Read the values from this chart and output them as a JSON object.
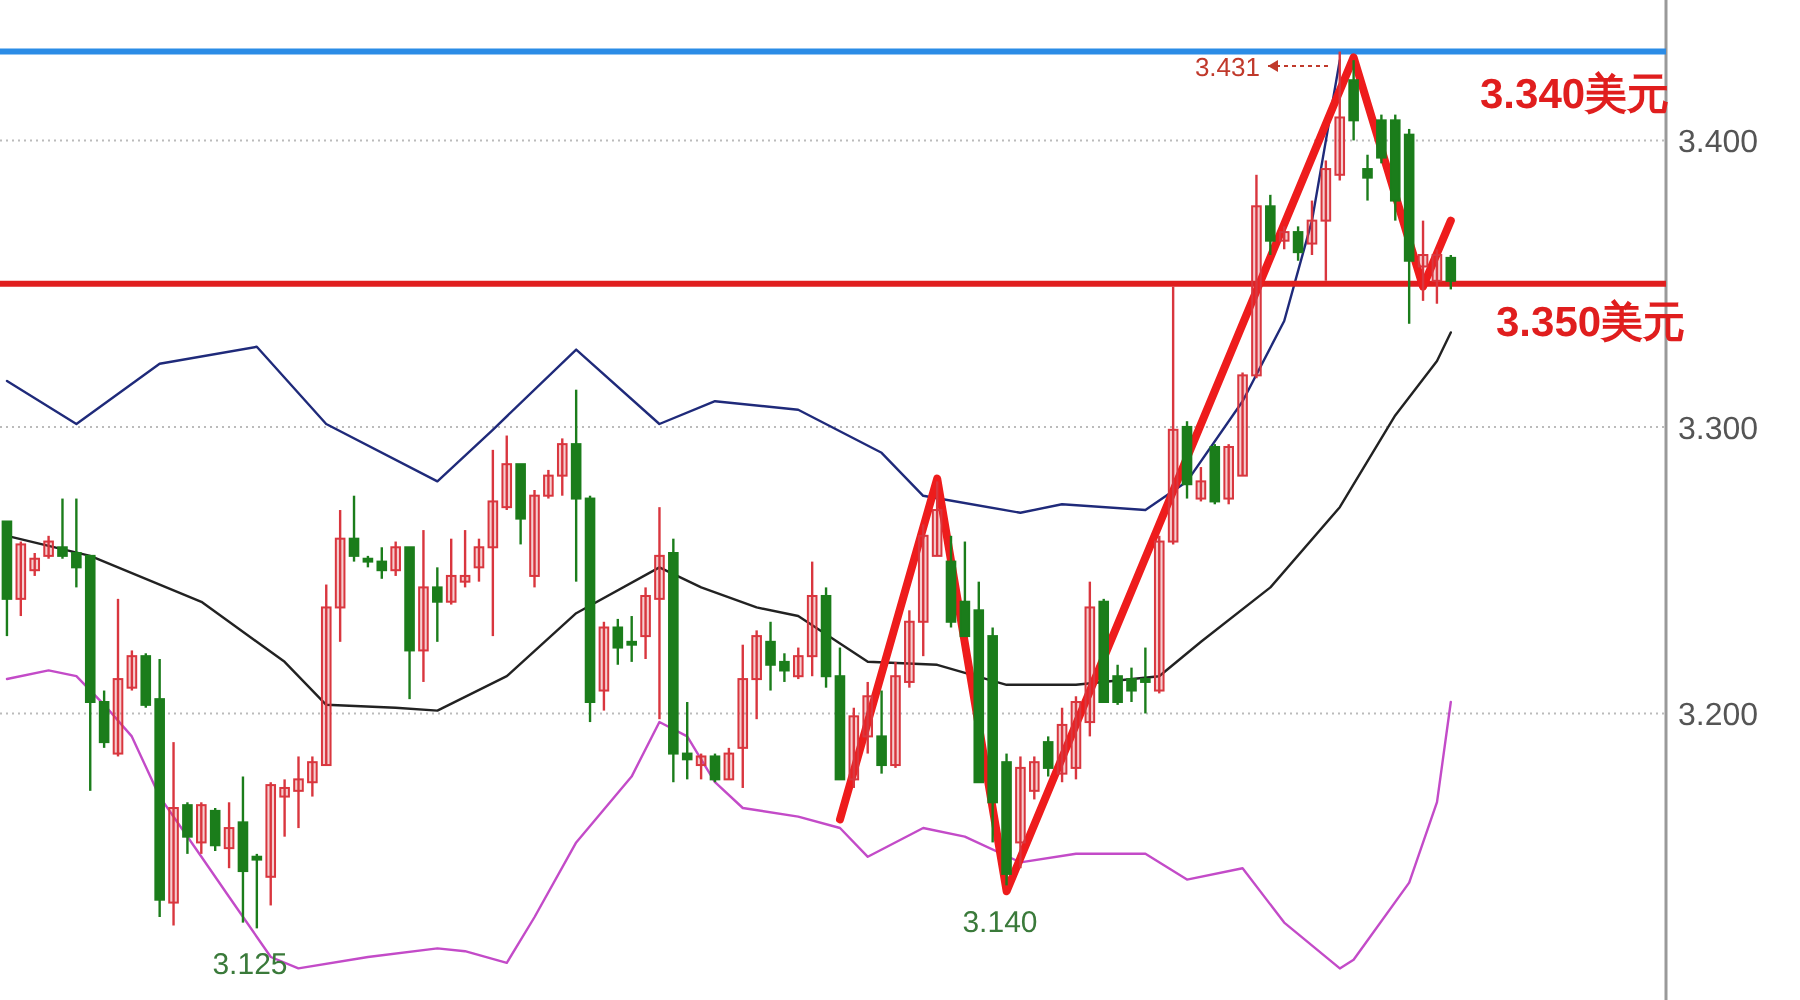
{
  "chart_data": {
    "type": "candlestick",
    "ylim": [
      3.1,
      3.449
    ],
    "yticks": [
      {
        "value": 3.2,
        "label": "3.200"
      },
      {
        "value": 3.3,
        "label": "3.300"
      },
      {
        "value": 3.4,
        "label": "3.400"
      }
    ],
    "tick_labels": "y",
    "grid": "y",
    "categories": [
      null,
      null,
      null,
      null,
      null,
      null,
      null,
      null,
      null,
      null,
      null,
      null,
      null,
      null,
      null,
      null,
      null,
      null,
      null,
      null,
      null,
      null,
      null,
      null,
      null,
      null,
      null,
      null,
      null,
      null,
      null,
      null,
      null,
      null,
      null,
      null,
      null,
      null,
      null,
      null,
      null,
      null,
      null,
      null,
      null,
      null,
      null,
      null,
      null,
      null,
      null,
      null,
      null,
      null,
      null,
      null,
      null,
      null,
      null,
      null,
      null,
      null,
      null,
      null,
      null,
      null,
      null,
      null,
      null,
      null,
      null,
      null,
      null,
      null,
      null,
      null,
      null,
      null,
      null,
      null,
      null,
      null,
      null,
      null,
      null,
      null,
      null,
      null,
      null,
      null,
      null,
      null,
      null,
      null,
      null,
      null,
      null,
      null,
      null,
      null,
      null,
      null,
      null,
      null,
      null,
      null,
      null,
      null,
      null,
      null,
      null,
      null,
      null,
      null,
      null,
      null,
      null,
      null,
      null,
      null
    ],
    "ohlc": [
      [
        3.267,
        3.267,
        3.227,
        3.24
      ],
      [
        3.24,
        3.26,
        3.234,
        3.259
      ],
      [
        3.25,
        3.256,
        3.248,
        3.254
      ],
      [
        3.255,
        3.262,
        3.254,
        3.26
      ],
      [
        3.258,
        3.275,
        3.254,
        3.255
      ],
      [
        3.256,
        3.275,
        3.244,
        3.251
      ],
      [
        3.255,
        3.255,
        3.173,
        3.204
      ],
      [
        3.204,
        3.208,
        3.188,
        3.19
      ],
      [
        3.186,
        3.24,
        3.185,
        3.212
      ],
      [
        3.209,
        3.222,
        3.208,
        3.22
      ],
      [
        3.22,
        3.221,
        3.202,
        3.203
      ],
      [
        3.205,
        3.219,
        3.129,
        3.135
      ],
      [
        3.134,
        3.19,
        3.126,
        3.167
      ],
      [
        3.168,
        3.169,
        3.151,
        3.157
      ],
      [
        3.155,
        3.169,
        3.151,
        3.168
      ],
      [
        3.166,
        3.167,
        3.152,
        3.154
      ],
      [
        3.153,
        3.169,
        3.146,
        3.16
      ],
      [
        3.162,
        3.178,
        3.127,
        3.145
      ],
      [
        3.15,
        3.151,
        3.125,
        3.149
      ],
      [
        3.143,
        3.176,
        3.133,
        3.175
      ],
      [
        3.171,
        3.177,
        3.157,
        3.174
      ],
      [
        3.173,
        3.185,
        3.16,
        3.177
      ],
      [
        3.176,
        3.185,
        3.171,
        3.183
      ],
      [
        3.182,
        3.245,
        3.182,
        3.237
      ],
      [
        3.237,
        3.271,
        3.225,
        3.261
      ],
      [
        3.261,
        3.276,
        3.253,
        3.255
      ],
      [
        3.254,
        3.255,
        3.251,
        3.253
      ],
      [
        3.253,
        3.258,
        3.247,
        3.25
      ],
      [
        3.25,
        3.26,
        3.248,
        3.258
      ],
      [
        3.258,
        3.258,
        3.205,
        3.222
      ],
      [
        3.222,
        3.264,
        3.211,
        3.244
      ],
      [
        3.244,
        3.251,
        3.225,
        3.239
      ],
      [
        3.239,
        3.261,
        3.238,
        3.248
      ],
      [
        3.246,
        3.264,
        3.244,
        3.248
      ],
      [
        3.251,
        3.261,
        3.246,
        3.258
      ],
      [
        3.258,
        3.292,
        3.227,
        3.274
      ],
      [
        3.272,
        3.297,
        3.271,
        3.287
      ],
      [
        3.287,
        3.287,
        3.259,
        3.268
      ],
      [
        3.248,
        3.278,
        3.244,
        3.276
      ],
      [
        3.276,
        3.285,
        3.275,
        3.283
      ],
      [
        3.283,
        3.296,
        3.276,
        3.294
      ],
      [
        3.294,
        3.313,
        3.246,
        3.275
      ],
      [
        3.275,
        3.276,
        3.197,
        3.204
      ],
      [
        3.208,
        3.232,
        3.201,
        3.23
      ],
      [
        3.23,
        3.233,
        3.217,
        3.223
      ],
      [
        3.225,
        3.234,
        3.218,
        3.224
      ],
      [
        3.227,
        3.244,
        3.219,
        3.241
      ],
      [
        3.24,
        3.272,
        3.198,
        3.255
      ],
      [
        3.256,
        3.261,
        3.176,
        3.186
      ],
      [
        3.186,
        3.204,
        3.177,
        3.184
      ],
      [
        3.182,
        3.186,
        3.177,
        3.185
      ],
      [
        3.185,
        3.186,
        3.176,
        3.177
      ],
      [
        3.177,
        3.188,
        3.177,
        3.186
      ],
      [
        3.188,
        3.224,
        3.174,
        3.212
      ],
      [
        3.212,
        3.229,
        3.198,
        3.227
      ],
      [
        3.225,
        3.232,
        3.208,
        3.217
      ],
      [
        3.218,
        3.221,
        3.211,
        3.215
      ],
      [
        3.213,
        3.223,
        3.212,
        3.22
      ],
      [
        3.22,
        3.253,
        3.213,
        3.241
      ],
      [
        3.241,
        3.244,
        3.209,
        3.213
      ],
      [
        3.213,
        3.223,
        3.177,
        3.177
      ],
      [
        3.177,
        3.202,
        3.174,
        3.199
      ],
      [
        3.192,
        3.211,
        3.186,
        3.206
      ],
      [
        3.192,
        3.208,
        3.179,
        3.182
      ],
      [
        3.182,
        3.218,
        3.181,
        3.213
      ],
      [
        3.211,
        3.236,
        3.209,
        3.232
      ],
      [
        3.232,
        3.266,
        3.22,
        3.262
      ],
      [
        3.255,
        3.281,
        3.255,
        3.271
      ],
      [
        3.253,
        3.262,
        3.23,
        3.232
      ],
      [
        3.239,
        3.26,
        3.227,
        3.227
      ],
      [
        3.236,
        3.246,
        3.176,
        3.176
      ],
      [
        3.227,
        3.23,
        3.155,
        3.169
      ],
      [
        3.183,
        3.186,
        3.14,
        3.144
      ],
      [
        3.155,
        3.185,
        3.146,
        3.181
      ],
      [
        3.173,
        3.185,
        3.17,
        3.183
      ],
      [
        3.19,
        3.192,
        3.178,
        3.181
      ],
      [
        3.179,
        3.202,
        3.176,
        3.196
      ],
      [
        3.181,
        3.206,
        3.177,
        3.204
      ],
      [
        3.197,
        3.246,
        3.192,
        3.237
      ],
      [
        3.239,
        3.24,
        3.204,
        3.204
      ],
      [
        3.213,
        3.217,
        3.203,
        3.204
      ],
      [
        3.212,
        3.216,
        3.204,
        3.208
      ],
      [
        3.212,
        3.223,
        3.2,
        3.211
      ],
      [
        3.208,
        3.262,
        3.207,
        3.26
      ],
      [
        3.26,
        3.349,
        3.259,
        3.299
      ],
      [
        3.3,
        3.302,
        3.275,
        3.28
      ],
      [
        3.275,
        3.286,
        3.274,
        3.281
      ],
      [
        3.293,
        3.294,
        3.273,
        3.274
      ],
      [
        3.275,
        3.294,
        3.273,
        3.293
      ],
      [
        3.283,
        3.319,
        3.283,
        3.318
      ],
      [
        3.318,
        3.388,
        3.317,
        3.377
      ],
      [
        3.377,
        3.381,
        3.36,
        3.365
      ],
      [
        3.365,
        3.37,
        3.362,
        3.368
      ],
      [
        3.368,
        3.37,
        3.358,
        3.361
      ],
      [
        3.364,
        3.379,
        3.36,
        3.372
      ],
      [
        3.372,
        3.393,
        3.351,
        3.39
      ],
      [
        3.388,
        3.431,
        3.386,
        3.408
      ],
      [
        3.421,
        3.428,
        3.4,
        3.407
      ],
      [
        3.39,
        3.395,
        3.379,
        3.387
      ],
      [
        3.407,
        3.409,
        3.392,
        3.394
      ],
      [
        3.407,
        3.409,
        3.372,
        3.379
      ],
      [
        3.402,
        3.404,
        3.336,
        3.358
      ],
      [
        3.356,
        3.372,
        3.344,
        3.36
      ],
      [
        3.351,
        3.362,
        3.343,
        3.36
      ],
      [
        3.359,
        3.36,
        3.348,
        3.351
      ],
      null,
      null,
      null,
      null,
      null,
      null,
      null,
      null,
      null,
      null,
      null,
      null,
      null,
      null,
      null
    ],
    "series": [
      {
        "type": "line",
        "color": "#1f2a7a",
        "values": [
          3.316,
          null,
          null,
          null,
          null,
          3.301,
          null,
          null,
          null,
          null,
          null,
          3.322,
          null,
          null,
          null,
          null,
          null,
          null,
          3.328,
          null,
          null,
          null,
          null,
          3.301,
          null,
          null,
          null,
          null,
          null,
          null,
          null,
          3.281,
          null,
          null,
          null,
          3.299,
          null,
          null,
          null,
          null,
          null,
          3.327,
          null,
          null,
          null,
          null,
          null,
          3.301,
          null,
          null,
          null,
          3.309,
          null,
          null,
          null,
          null,
          null,
          3.306,
          null,
          null,
          null,
          null,
          null,
          3.291,
          null,
          null,
          3.276,
          null,
          null,
          null,
          null,
          null,
          null,
          3.27,
          null,
          null,
          3.273,
          null,
          null,
          null,
          null,
          null,
          3.271,
          null,
          null,
          3.281,
          null,
          null,
          null,
          3.309,
          null,
          null,
          3.337,
          null,
          3.372,
          null,
          3.428,
          null,
          null,
          null,
          null,
          null,
          null,
          null,
          null,
          null,
          null,
          null,
          null,
          null,
          null,
          null,
          null,
          null,
          null,
          null,
          null,
          null,
          null,
          null
        ]
      },
      {
        "type": "line",
        "color": "#222222",
        "values": [
          3.262,
          null,
          null,
          null,
          null,
          null,
          3.255,
          null,
          null,
          null,
          null,
          null,
          null,
          null,
          3.239,
          null,
          null,
          null,
          null,
          null,
          3.218,
          null,
          null,
          3.203,
          null,
          null,
          null,
          null,
          3.202,
          null,
          null,
          3.201,
          null,
          null,
          null,
          null,
          3.213,
          null,
          null,
          null,
          null,
          3.235,
          null,
          null,
          null,
          null,
          null,
          3.251,
          null,
          null,
          3.244,
          null,
          null,
          null,
          3.237,
          null,
          null,
          3.234,
          null,
          null,
          null,
          null,
          3.218,
          null,
          null,
          null,
          null,
          3.217,
          null,
          null,
          null,
          null,
          3.21,
          null,
          null,
          null,
          null,
          3.21,
          null,
          null,
          null,
          null,
          null,
          3.213,
          null,
          null,
          3.225,
          null,
          null,
          null,
          null,
          3.244,
          null,
          null,
          null,
          null,
          3.272,
          null,
          null,
          null,
          3.304,
          null,
          null,
          3.323,
          3.333,
          null,
          null,
          null,
          null,
          null,
          null,
          null,
          null,
          null,
          null,
          null,
          null,
          null,
          null,
          null
        ]
      },
      {
        "type": "line",
        "color": "#c34bc8",
        "values": [
          3.212,
          null,
          null,
          3.215,
          null,
          3.213,
          null,
          3.203,
          null,
          3.192,
          null,
          3.171,
          null,
          null,
          3.15,
          null,
          3.136,
          null,
          null,
          3.115,
          null,
          3.111,
          null,
          null,
          null,
          null,
          3.115,
          null,
          null,
          null,
          null,
          3.118,
          null,
          3.117,
          null,
          null,
          3.113,
          null,
          3.129,
          null,
          null,
          3.155,
          null,
          null,
          null,
          3.178,
          null,
          3.197,
          null,
          3.192,
          null,
          3.176,
          null,
          3.167,
          null,
          null,
          null,
          3.164,
          null,
          null,
          3.16,
          null,
          3.15,
          null,
          null,
          null,
          3.16,
          null,
          null,
          3.157,
          null,
          null,
          null,
          3.148,
          null,
          null,
          null,
          3.151,
          null,
          null,
          null,
          null,
          3.151,
          null,
          null,
          3.142,
          null,
          null,
          null,
          3.146,
          null,
          null,
          3.127,
          null,
          null,
          null,
          3.111,
          3.114,
          null,
          null,
          null,
          3.141,
          null,
          3.169,
          3.204,
          null,
          null,
          null,
          null,
          null,
          null,
          null,
          null,
          null,
          null,
          null,
          null,
          null,
          null,
          null
        ]
      },
      {
        "type": "line",
        "color": "#ee1c1c",
        "values": [
          null,
          null,
          null,
          null,
          null,
          null,
          null,
          null,
          null,
          null,
          null,
          null,
          null,
          null,
          null,
          null,
          null,
          null,
          null,
          null,
          null,
          null,
          null,
          null,
          null,
          null,
          null,
          null,
          null,
          null,
          null,
          null,
          null,
          null,
          null,
          null,
          null,
          null,
          null,
          null,
          null,
          null,
          null,
          null,
          null,
          null,
          null,
          null,
          null,
          null,
          null,
          null,
          null,
          null,
          null,
          null,
          null,
          null,
          null,
          null,
          3.163,
          null,
          null,
          null,
          null,
          null,
          null,
          3.282,
          null,
          null,
          null,
          null,
          3.138,
          null,
          null,
          null,
          null,
          null,
          null,
          null,
          null,
          null,
          null,
          null,
          null,
          null,
          null,
          null,
          null,
          null,
          null,
          null,
          null,
          null,
          null,
          null,
          null,
          3.429,
          null,
          null,
          null,
          null,
          3.349,
          null,
          3.372,
          null,
          null,
          null,
          null,
          null,
          null,
          null,
          null,
          null,
          null,
          null,
          null,
          null,
          null,
          null
        ]
      }
    ],
    "ref_lines": [
      {
        "axis": "y",
        "value": 3.431,
        "color": "#2b8ce6"
      },
      {
        "axis": "y",
        "value": 3.35,
        "label": "3.350美元",
        "color": "#e01e1e"
      }
    ],
    "annotations": [
      "3.431",
      "3.140",
      "3.125",
      "3.340美元"
    ]
  }
}
